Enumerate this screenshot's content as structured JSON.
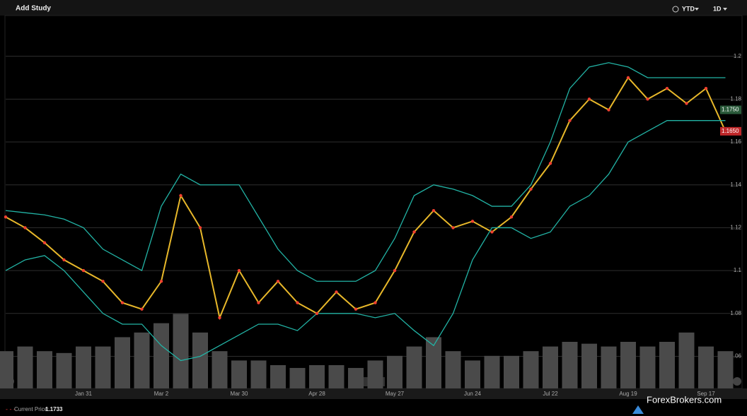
{
  "toolbar": {
    "add_study": "Add Study",
    "range": "YTD",
    "interval": "1D"
  },
  "chart_data": {
    "type": "line",
    "categories": [
      null,
      null,
      null,
      null,
      "Jan 31",
      null,
      null,
      null,
      "Mar 2",
      null,
      null,
      null,
      "Mar 30",
      null,
      null,
      null,
      "Apr 28",
      null,
      null,
      null,
      "May 27",
      null,
      null,
      null,
      "Jun 24",
      null,
      null,
      null,
      "Jul 22",
      null,
      null,
      null,
      "Aug 19",
      null,
      null,
      null,
      "Sep 17",
      null
    ],
    "series": [
      {
        "color": "#e8b82a",
        "values": [
          1.125,
          1.12,
          1.113,
          1.105,
          1.1,
          1.095,
          1.085,
          1.082,
          1.095,
          1.135,
          1.12,
          1.078,
          1.1,
          1.085,
          1.095,
          1.085,
          1.08,
          1.09,
          1.082,
          1.085,
          1.1,
          1.118,
          1.128,
          1.12,
          1.123,
          1.118,
          1.125,
          1.138,
          1.15,
          1.17,
          1.18,
          1.175,
          1.19,
          1.18,
          1.185,
          1.178,
          1.185,
          1.165
        ]
      },
      {
        "color": "#22b3a5",
        "values": [
          1.128,
          1.127,
          1.126,
          1.124,
          1.12,
          1.11,
          1.105,
          1.1,
          1.13,
          1.145,
          1.14,
          1.14,
          1.14,
          1.125,
          1.11,
          1.1,
          1.095,
          1.095,
          1.095,
          1.1,
          1.115,
          1.135,
          1.14,
          1.138,
          1.135,
          1.13,
          1.13,
          1.14,
          1.16,
          1.185,
          1.195,
          1.197,
          1.195,
          1.19,
          1.19,
          1.19,
          1.19,
          1.19
        ]
      },
      {
        "color": "#22b3a5",
        "values": [
          1.1,
          1.105,
          1.107,
          1.1,
          1.09,
          1.08,
          1.075,
          1.075,
          1.065,
          1.058,
          1.06,
          1.065,
          1.07,
          1.075,
          1.075,
          1.072,
          1.08,
          1.08,
          1.08,
          1.078,
          1.08,
          1.072,
          1.065,
          1.08,
          1.105,
          1.12,
          1.12,
          1.115,
          1.118,
          1.13,
          1.135,
          1.145,
          1.16,
          1.165,
          1.17,
          1.17,
          1.17,
          1.17
        ]
      },
      {
        "type": "bar",
        "axis": "y2",
        "color": "#4a4a4a",
        "values": [
          40,
          45,
          40,
          38,
          45,
          45,
          55,
          60,
          70,
          80,
          60,
          40,
          30,
          30,
          25,
          22,
          25,
          25,
          22,
          30,
          35,
          45,
          55,
          40,
          30,
          35,
          35,
          40,
          45,
          50,
          48,
          45,
          50,
          45,
          50,
          60,
          45,
          40
        ]
      }
    ],
    "ylim": [
      1.045,
      1.219
    ],
    "yticks": [
      1.06,
      1.08,
      1.1,
      1.12,
      1.14,
      1.16,
      1.18,
      1.2
    ],
    "y2lim": [
      0,
      400
    ],
    "grid": true,
    "annotations": [
      {
        "value": 1.175,
        "label": "1.1750",
        "color": "#2a5a3a"
      },
      {
        "value": 1.165,
        "label": "1.1650",
        "color": "#c0282a"
      }
    ]
  },
  "footer": {
    "current_price_label": "Current Price:",
    "current_price": "1.1733",
    "watermark": "ForexBrokers.com"
  }
}
